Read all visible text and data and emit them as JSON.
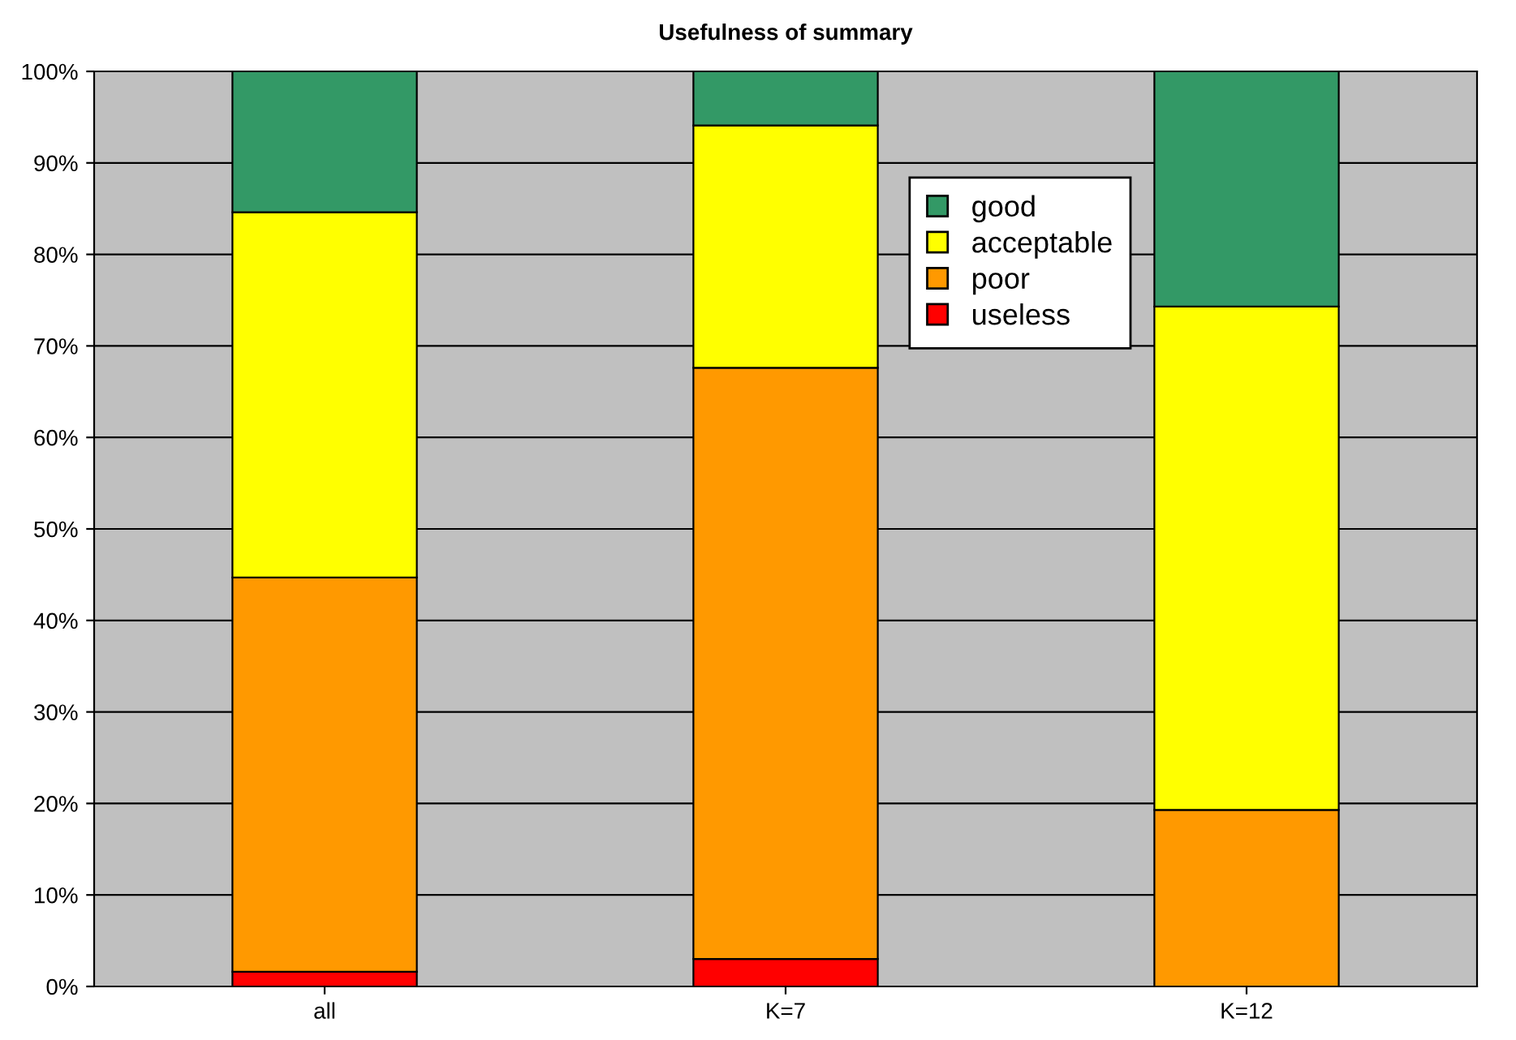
{
  "chart_data": {
    "type": "bar",
    "title": "Usefulness of summary",
    "categories": [
      "all",
      "K=7",
      "K=12"
    ],
    "stacked": true,
    "series": [
      {
        "name": "useless",
        "color": "#ff0000",
        "values": [
          1.6,
          3.0,
          0
        ]
      },
      {
        "name": "poor",
        "color": "#ff9900",
        "values": [
          43.1,
          64.6,
          19.3
        ]
      },
      {
        "name": "acceptable",
        "color": "#ffff00",
        "values": [
          39.9,
          26.5,
          55.0
        ]
      },
      {
        "name": "good",
        "color": "#339966",
        "values": [
          15.4,
          5.9,
          25.7
        ]
      }
    ],
    "ylim": [
      0,
      100
    ],
    "yticks": [
      {
        "value": 0,
        "label": "0%"
      },
      {
        "value": 10,
        "label": "10%"
      },
      {
        "value": 20,
        "label": "20%"
      },
      {
        "value": 30,
        "label": "30%"
      },
      {
        "value": 40,
        "label": "40%"
      },
      {
        "value": 50,
        "label": "50%"
      },
      {
        "value": 60,
        "label": "60%"
      },
      {
        "value": 70,
        "label": "70%"
      },
      {
        "value": 80,
        "label": "80%"
      },
      {
        "value": 90,
        "label": "90%"
      },
      {
        "value": 100,
        "label": "100%"
      }
    ],
    "grid": "y",
    "legend": "top right"
  }
}
